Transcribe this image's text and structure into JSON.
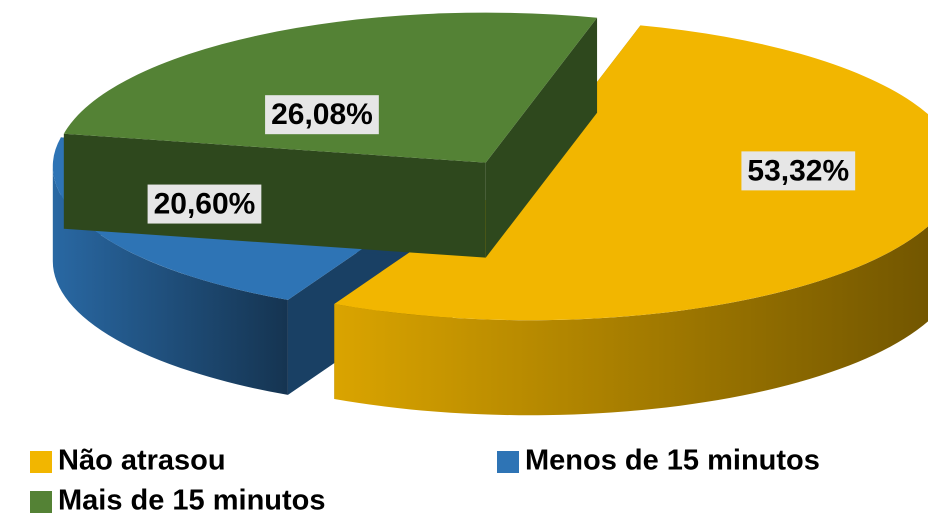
{
  "chart_data": {
    "type": "pie",
    "categories": [
      "Não atrasou",
      "Menos de 15 minutos",
      "Mais de 15 minutos"
    ],
    "values": [
      53.32,
      20.6,
      26.08
    ],
    "value_labels": [
      "53,32%",
      "20,60%",
      "26,08%"
    ],
    "colors": [
      "#f2b600",
      "#2e74b5",
      "#548235"
    ],
    "legend": "bottom"
  }
}
